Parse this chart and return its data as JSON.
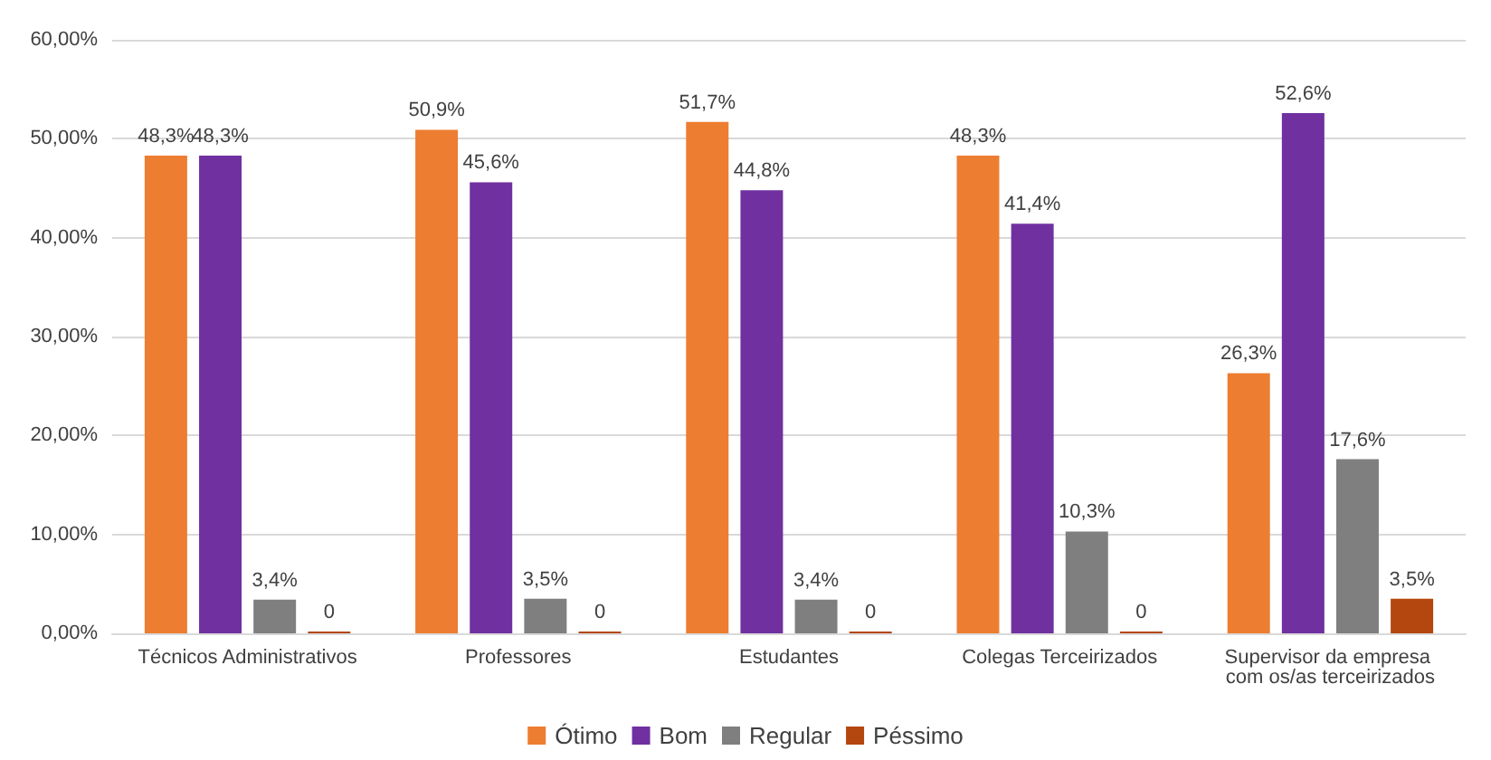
{
  "chart_data": {
    "type": "bar",
    "categories": [
      "Técnicos Administrativos",
      "Professores",
      "Estudantes",
      "Colegas Terceirizados",
      "Supervisor da empresa com os/as terceirizados"
    ],
    "series": [
      {
        "name": "Ótimo",
        "color": "#ed7d31",
        "values": [
          48.3,
          50.9,
          51.7,
          48.3,
          26.3
        ],
        "value_labels": [
          "48,3%",
          "50,9%",
          "51,7%",
          "48,3%",
          "26,3%"
        ]
      },
      {
        "name": "Bom",
        "color": "#7030a0",
        "values": [
          48.3,
          45.6,
          44.8,
          41.4,
          52.6
        ],
        "value_labels": [
          "48,3%",
          "45,6%",
          "44,8%",
          "41,4%",
          "52,6%"
        ]
      },
      {
        "name": "Regular",
        "color": "#7f7f7f",
        "values": [
          3.4,
          3.5,
          3.4,
          10.3,
          17.6
        ],
        "value_labels": [
          "3,4%",
          "3,5%",
          "3,4%",
          "10,3%",
          "17,6%"
        ]
      },
      {
        "name": "Péssimo",
        "color": "#b4470f",
        "values": [
          0,
          0,
          0,
          0,
          3.5
        ],
        "value_labels": [
          "0",
          "0",
          "0",
          "0",
          "3,5%"
        ]
      }
    ],
    "ylim": [
      0,
      60
    ],
    "yticks": [
      {
        "value": 0,
        "label": "0,00%"
      },
      {
        "value": 10,
        "label": "10,00%"
      },
      {
        "value": 20,
        "label": "20,00%"
      },
      {
        "value": 30,
        "label": "30,00%"
      },
      {
        "value": 40,
        "label": "40,00%"
      },
      {
        "value": 50,
        "label": "50,00%"
      },
      {
        "value": 60,
        "label": "60,00%"
      }
    ],
    "grid": "y",
    "legend": "bottom"
  }
}
